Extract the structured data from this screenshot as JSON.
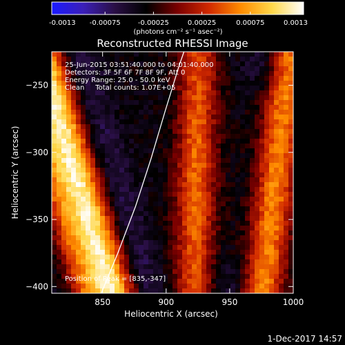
{
  "chart_data": {
    "type": "heatmap",
    "title": "Reconstructed RHESSI Image",
    "xlabel": "Heliocentric X (arcsec)",
    "ylabel": "Heliocentric Y (arcsec)",
    "x_ticks": [
      850,
      900,
      950,
      1000
    ],
    "y_ticks": [
      -250,
      -300,
      -350,
      -400
    ],
    "xlim": [
      810,
      1000
    ],
    "ylim": [
      -405,
      -225
    ],
    "colorbar": {
      "min": -0.0013,
      "max": 0.0013,
      "ticks": [
        "-0.0013",
        "-0.00075",
        "-0.00025",
        "0.00025",
        "0.00075",
        "0.0013"
      ],
      "units_label": "(photons cm⁻² s⁻¹ asec⁻²)",
      "colors": [
        "#1a1aff",
        "#3b1fb8",
        "#2a0f45",
        "#000000",
        "#7a0000",
        "#d22a00",
        "#ff8c00",
        "#ffd84a",
        "#ffffff"
      ]
    },
    "annotations": {
      "time_range": "25-Jun-2015 03:51:40.000 to 04:01:40.000",
      "detectors": "Detectors: 3F 5F 6F 7F 8F 9F, Att 0",
      "energy_range": "Energy Range: 25.0 - 50.0 keV",
      "clean_counts": "Clean     Total counts: 1.07E+05",
      "peak": "Position of Peak = [835,-347]"
    },
    "peak": {
      "x": 835,
      "y": -347
    },
    "limb_curve": [
      [
        849,
        -405
      ],
      [
        862,
        -375
      ],
      [
        876,
        -340
      ],
      [
        888,
        -305
      ],
      [
        899,
        -270
      ],
      [
        910,
        -236
      ],
      [
        914,
        -225
      ]
    ],
    "timestamp": "1-Dec-2017 14:57"
  }
}
